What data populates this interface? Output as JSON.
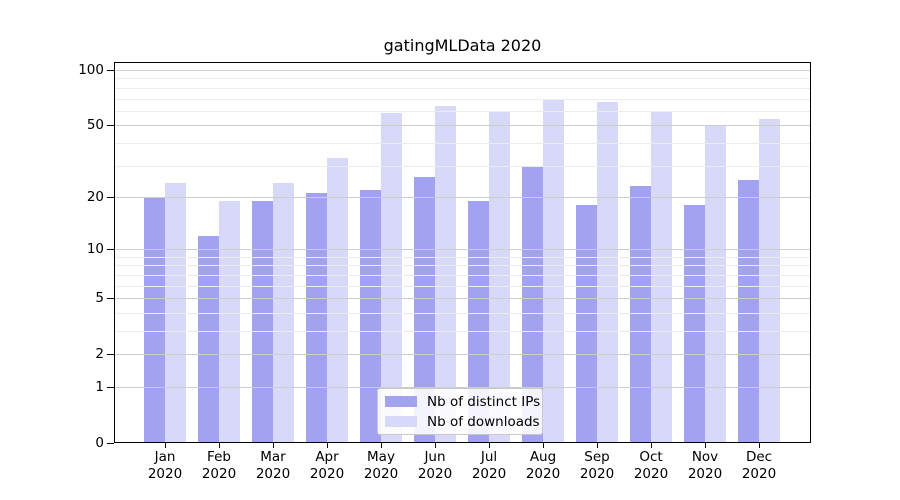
{
  "title": "gatingMLData 2020",
  "chart_data": {
    "type": "bar",
    "title": "gatingMLData 2020",
    "categories": [
      "Jan",
      "Feb",
      "Mar",
      "Apr",
      "May",
      "Jun",
      "Jul",
      "Aug",
      "Sep",
      "Oct",
      "Nov",
      "Dec"
    ],
    "category_year": "2020",
    "series": [
      {
        "name": "Nb of distinct IPs",
        "color": "#a2a2f0",
        "values": [
          20,
          12,
          19,
          21,
          22,
          26,
          19,
          30,
          18,
          23,
          18,
          25
        ]
      },
      {
        "name": "Nb of downloads",
        "color": "#d8d8f8",
        "values": [
          24,
          19,
          24,
          33,
          58,
          64,
          60,
          69,
          67,
          60,
          50,
          54
        ]
      }
    ],
    "xlabel": "",
    "ylabel": "",
    "y_axis": {
      "scale": "log10(value+1)",
      "tick_labels": [
        0,
        1,
        2,
        5,
        10,
        20,
        50,
        100
      ],
      "minor_gridlines": [
        3,
        4,
        6,
        7,
        8,
        9,
        30,
        40,
        60,
        70,
        80,
        90
      ],
      "range": [
        0,
        110
      ]
    },
    "legend": {
      "position": "lower center",
      "entries": [
        "Nb of distinct IPs",
        "Nb of downloads"
      ]
    },
    "grid": true
  },
  "colors": {
    "bar_distinct_ips": "#a2a2f0",
    "bar_downloads": "#d8d8f8",
    "grid_major": "#cdcdcd",
    "grid_minor": "#ececec",
    "axis": "#000000",
    "background": "#ffffff"
  }
}
